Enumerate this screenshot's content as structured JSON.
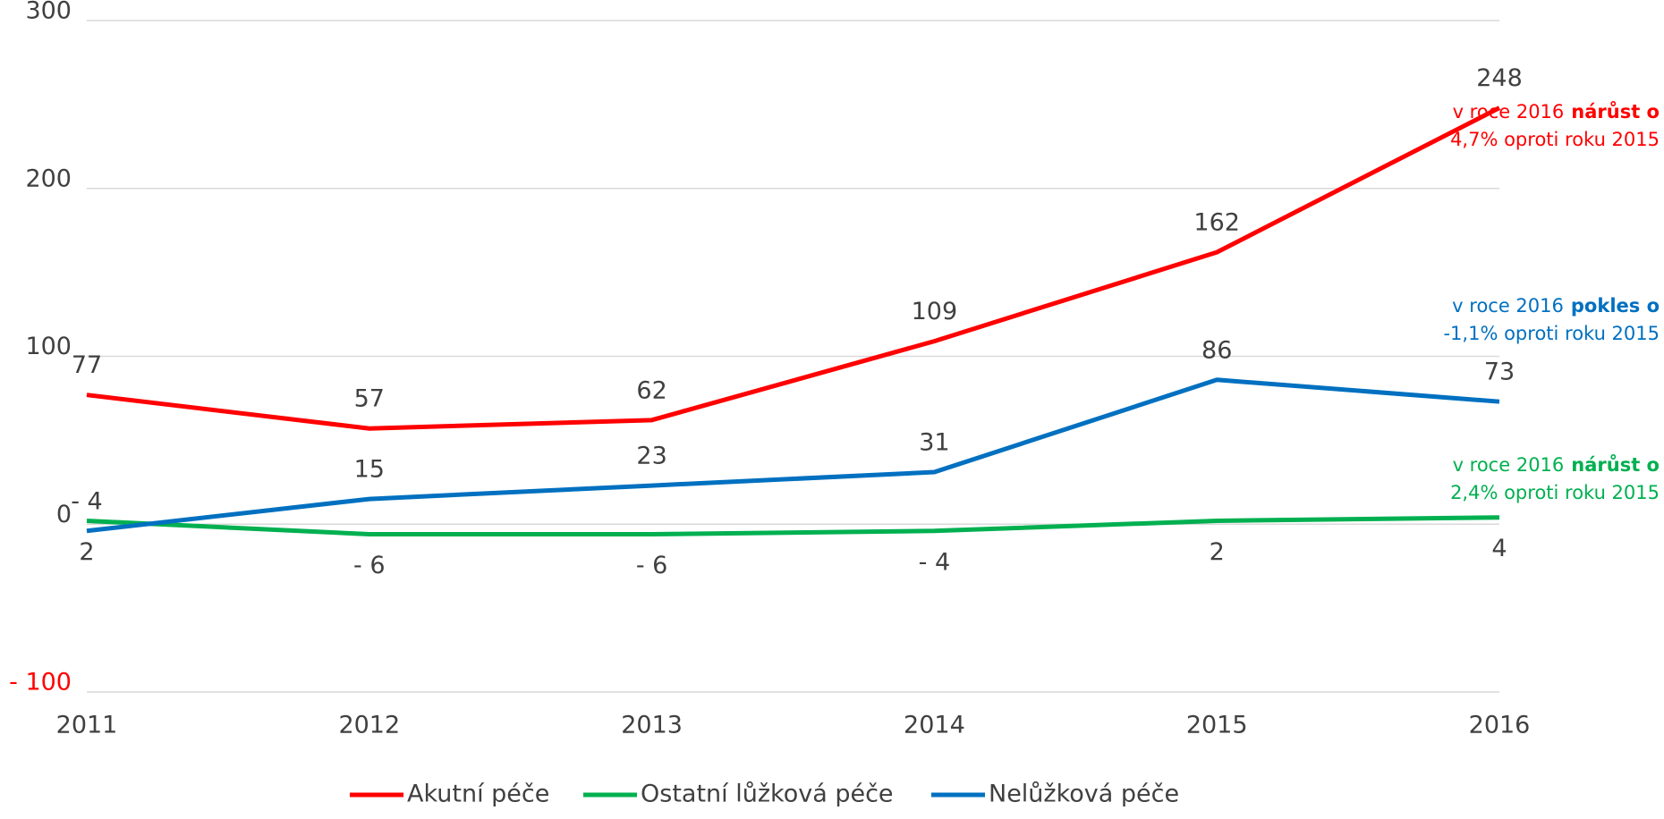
{
  "chart_data": {
    "type": "line",
    "categories": [
      "2011",
      "2012",
      "2013",
      "2014",
      "2015",
      "2016"
    ],
    "series": [
      {
        "name": "Akutní péče",
        "color": "#ff0000",
        "values": [
          77,
          57,
          62,
          109,
          162,
          248
        ]
      },
      {
        "name": "Ostatní lůžková péče",
        "color": "#00b050",
        "values": [
          2,
          -6,
          -6,
          -4,
          2,
          4
        ],
        "value_labels": [
          "2",
          "- 6",
          "- 6",
          "- 4",
          "2",
          "4"
        ]
      },
      {
        "name": "Nelůžková péče",
        "color": "#0070c0",
        "values": [
          -4,
          15,
          23,
          31,
          86,
          73
        ],
        "value_labels": [
          "- 4",
          "15",
          "23",
          "31",
          "86",
          "73"
        ]
      }
    ],
    "ylim": [
      -100,
      300
    ],
    "yticks": [
      {
        "value": -100,
        "label": "- 100"
      },
      0,
      100,
      200,
      300
    ],
    "negative_tick_color": "#ff0000",
    "grid": true,
    "legend": "bottom",
    "annotations": [
      {
        "color": "#ff0000",
        "prefix": "v roce 2016",
        "bold": "nárůst o",
        "line2": "4,7% oproti roku 2015"
      },
      {
        "color": "#0070c0",
        "prefix": "v roce 2016",
        "bold": "pokles o",
        "line2": "-1,1% oproti roku 2015"
      },
      {
        "color": "#00b050",
        "prefix": "v roce 2016",
        "bold": "nárůst o",
        "line2": "2,4% oproti roku 2015"
      }
    ]
  }
}
